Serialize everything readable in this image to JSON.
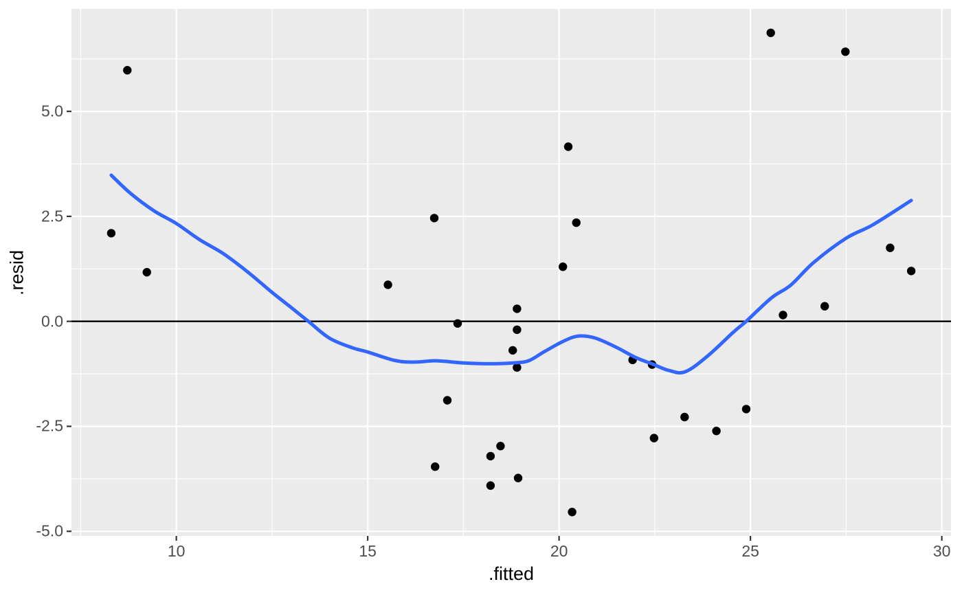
{
  "chart_data": {
    "type": "scatter",
    "title": "",
    "xlabel": ".fitted",
    "ylabel": ".resid",
    "xlim": [
      7.26,
      30.24
    ],
    "ylim": [
      -5.11,
      7.44
    ],
    "x_major_ticks": [
      10,
      15,
      20,
      25,
      30
    ],
    "x_tick_labels": [
      "10",
      "15",
      "20",
      "25",
      "30"
    ],
    "x_minor_ticks": [
      7.5,
      12.5,
      17.5,
      22.5,
      27.5
    ],
    "y_major_ticks": [
      -5.0,
      -2.5,
      0.0,
      2.5,
      5.0
    ],
    "y_tick_labels": [
      "-5.0",
      "-2.5",
      "0.0",
      "2.5",
      "5.0"
    ],
    "y_minor_ticks": [
      -3.75,
      -1.25,
      1.25,
      3.75,
      6.25
    ],
    "grid": "on",
    "legend": "none",
    "styles": {
      "panel_background": "#EBEBEB",
      "grid_color": "#FFFFFF",
      "point_color": "#000000",
      "smooth_line_color": "#3366FF",
      "zero_line_color": "#000000",
      "tick_mark_color": "#333333",
      "axis_text_color": "#4D4D4D",
      "axis_title_color": "#000000"
    },
    "series": [
      {
        "name": "residuals",
        "geom": "point",
        "points": [
          [
            8.3,
            2.1
          ],
          [
            8.72,
            5.98
          ],
          [
            9.23,
            1.17
          ],
          [
            15.53,
            0.87
          ],
          [
            16.74,
            2.46
          ],
          [
            16.76,
            -3.46
          ],
          [
            17.08,
            -1.88
          ],
          [
            17.35,
            -0.05
          ],
          [
            18.21,
            -3.21
          ],
          [
            18.21,
            -3.91
          ],
          [
            18.47,
            -2.97
          ],
          [
            18.79,
            -0.69
          ],
          [
            18.9,
            0.3
          ],
          [
            18.9,
            -0.2
          ],
          [
            18.9,
            -1.1
          ],
          [
            18.93,
            -3.73
          ],
          [
            20.1,
            1.3
          ],
          [
            20.24,
            4.16
          ],
          [
            20.34,
            -4.54
          ],
          [
            20.45,
            2.35
          ],
          [
            21.92,
            -0.92
          ],
          [
            22.43,
            -1.03
          ],
          [
            22.48,
            -2.78
          ],
          [
            23.28,
            -2.28
          ],
          [
            24.11,
            -2.61
          ],
          [
            24.89,
            -2.09
          ],
          [
            25.53,
            6.87
          ],
          [
            25.85,
            0.15
          ],
          [
            26.94,
            0.36
          ],
          [
            27.48,
            6.42
          ],
          [
            28.65,
            1.75
          ],
          [
            29.2,
            1.2
          ]
        ]
      },
      {
        "name": "loess-smooth",
        "geom": "line",
        "points": [
          [
            8.3,
            3.48
          ],
          [
            8.8,
            3.05
          ],
          [
            9.42,
            2.63
          ],
          [
            10.0,
            2.33
          ],
          [
            10.6,
            1.95
          ],
          [
            11.25,
            1.6
          ],
          [
            11.9,
            1.15
          ],
          [
            12.5,
            0.69
          ],
          [
            13.0,
            0.33
          ],
          [
            13.45,
            0.0
          ],
          [
            14.0,
            -0.4
          ],
          [
            14.6,
            -0.63
          ],
          [
            15.0,
            -0.73
          ],
          [
            15.7,
            -0.93
          ],
          [
            16.2,
            -0.97
          ],
          [
            16.7,
            -0.94
          ],
          [
            17.0,
            -0.95
          ],
          [
            17.5,
            -0.99
          ],
          [
            18.2,
            -1.01
          ],
          [
            18.8,
            -0.99
          ],
          [
            19.2,
            -0.94
          ],
          [
            19.6,
            -0.73
          ],
          [
            20.1,
            -0.48
          ],
          [
            20.5,
            -0.35
          ],
          [
            20.95,
            -0.4
          ],
          [
            21.5,
            -0.62
          ],
          [
            22.0,
            -0.86
          ],
          [
            22.45,
            -1.02
          ],
          [
            22.87,
            -1.17
          ],
          [
            23.3,
            -1.2
          ],
          [
            23.9,
            -0.81
          ],
          [
            24.55,
            -0.26
          ],
          [
            24.9,
            0.01
          ],
          [
            25.55,
            0.56
          ],
          [
            26.05,
            0.86
          ],
          [
            26.65,
            1.4
          ],
          [
            27.5,
            1.98
          ],
          [
            28.2,
            2.3
          ],
          [
            29.2,
            2.88
          ]
        ]
      },
      {
        "name": "zero-reference-line",
        "geom": "hline",
        "y": 0
      }
    ]
  }
}
